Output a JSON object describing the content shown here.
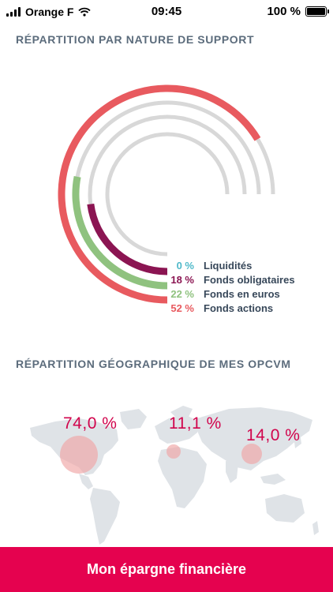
{
  "status_bar": {
    "carrier": "Orange F",
    "time": "09:45",
    "battery": "100 %",
    "battery_level": 1.0
  },
  "support_section": {
    "title": "RÉPARTITION PAR NATURE DE SUPPORT",
    "track_color": "#d8d8d8",
    "items": [
      {
        "value": "0 %",
        "label": "Liquidités",
        "percent": 0,
        "color": "#4fb9c9"
      },
      {
        "value": "18 %",
        "label": "Fonds obligataires",
        "percent": 18,
        "color": "#8b1552"
      },
      {
        "value": "22 %",
        "label": "Fonds en euros",
        "percent": 22,
        "color": "#8fc27f"
      },
      {
        "value": "52 %",
        "label": "Fonds actions",
        "percent": 52,
        "color": "#e85a5f"
      }
    ]
  },
  "geo_section": {
    "title": "RÉPARTITION GÉOGRAPHIQUE DE MES OPCVM",
    "regions": [
      {
        "label": "74,0 %",
        "share": 74.0
      },
      {
        "label": "11,1 %",
        "share": 11.1
      },
      {
        "label": "14,0 %",
        "share": 14.0
      }
    ]
  },
  "bottom_button": {
    "label": "Mon épargne financière",
    "color": "#e5024f"
  }
}
